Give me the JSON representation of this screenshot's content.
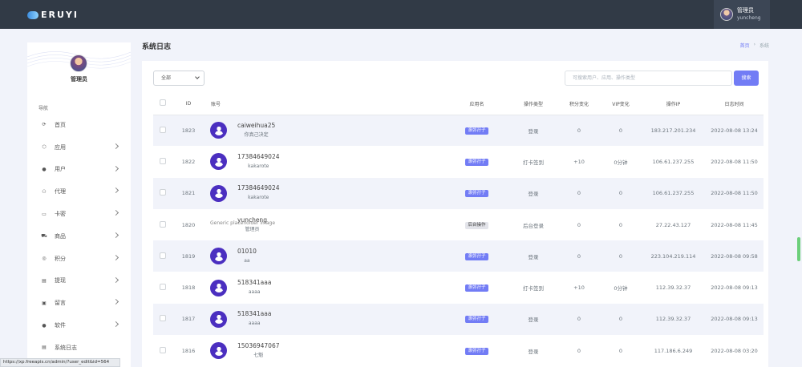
{
  "topbar": {
    "logo_text": "ERUYI",
    "user_name": "管理员",
    "user_sub": "yuncheng"
  },
  "sidebar": {
    "profile_name": "管理员",
    "nav_title": "导航",
    "items": [
      {
        "label": "首页",
        "icon": "⟳",
        "has_arrow": false
      },
      {
        "label": "应用",
        "icon": "⬡",
        "has_arrow": true
      },
      {
        "label": "用户",
        "icon": "●",
        "has_arrow": true
      },
      {
        "label": "代理",
        "icon": "⚇",
        "has_arrow": true
      },
      {
        "label": "卡密",
        "icon": "▭",
        "has_arrow": true
      },
      {
        "label": "商品",
        "icon": "⛟",
        "has_arrow": true
      },
      {
        "label": "积分",
        "icon": "◎",
        "has_arrow": true
      },
      {
        "label": "提现",
        "icon": "▤",
        "has_arrow": true
      },
      {
        "label": "留言",
        "icon": "▣",
        "has_arrow": true
      },
      {
        "label": "软件",
        "icon": "●",
        "has_arrow": true
      },
      {
        "label": "系统日志",
        "icon": "▤",
        "has_arrow": false
      }
    ]
  },
  "page": {
    "title": "系统日志",
    "breadcrumb_home": "首页",
    "breadcrumb_sep": "›",
    "breadcrumb_current": "系统"
  },
  "filter": {
    "select_value": "全部",
    "search_placeholder": "可搜索用户、应用、操作类型",
    "search_button": "搜索"
  },
  "table": {
    "headers": {
      "id": "ID",
      "account": "账号",
      "app": "应用名",
      "op_type": "操作类型",
      "points": "积分变化",
      "vip": "VIP变化",
      "ip": "操作IP",
      "time": "日志时间"
    },
    "rows": [
      {
        "id": "1823",
        "name": "caiweihua25",
        "nick": "你真己决定",
        "app": "滚弥孖子",
        "op": "登录",
        "points": "0",
        "vip": "0",
        "ip": "183.217.201.234",
        "time": "2022-08-08 13:24"
      },
      {
        "id": "1822",
        "name": "17384649024",
        "nick": "kakarote",
        "app": "滚弥孖子",
        "op": "打卡签到",
        "points": "+10",
        "vip": "0分钟",
        "ip": "106.61.237.255",
        "time": "2022-08-08 11:50"
      },
      {
        "id": "1821",
        "name": "17384649024",
        "nick": "kakarote",
        "app": "滚弥孖子",
        "op": "登录",
        "points": "0",
        "vip": "0",
        "ip": "106.61.237.255",
        "time": "2022-08-08 11:50"
      },
      {
        "id": "1820",
        "name": "yuncheng",
        "nick": "管理员",
        "alt": "Generic placeholder image",
        "app": "后台操作",
        "op": "后台登录",
        "points": "0",
        "vip": "0",
        "ip": "27.22.43.127",
        "time": "2022-08-08 11:45"
      },
      {
        "id": "1819",
        "name": "01010",
        "nick": "aa",
        "app": "滚弥孖子",
        "op": "登录",
        "points": "0",
        "vip": "0",
        "ip": "223.104.219.114",
        "time": "2022-08-08 09:58"
      },
      {
        "id": "1818",
        "name": "518341aaa",
        "nick": "aaaa",
        "app": "滚弥孖子",
        "op": "打卡签到",
        "points": "+10",
        "vip": "0分钟",
        "ip": "112.39.32.37",
        "time": "2022-08-08 09:13"
      },
      {
        "id": "1817",
        "name": "518341aaa",
        "nick": "aaaa",
        "app": "滚弥孖子",
        "op": "登录",
        "points": "0",
        "vip": "0",
        "ip": "112.39.32.37",
        "time": "2022-08-08 09:13"
      },
      {
        "id": "1816",
        "name": "15036947067",
        "nick": "七魁",
        "app": "滚弥孖子",
        "op": "登录",
        "points": "0",
        "vip": "0",
        "ip": "117.186.6.249",
        "time": "2022-08-08 03:20"
      }
    ]
  },
  "statusbar": {
    "url": "https://xp.freeapis.cn/admin/?user_edit&id=564"
  },
  "colors": {
    "accent": "#727cf5",
    "topbar": "#313a46",
    "row_stripe": "#f1f3fa"
  }
}
